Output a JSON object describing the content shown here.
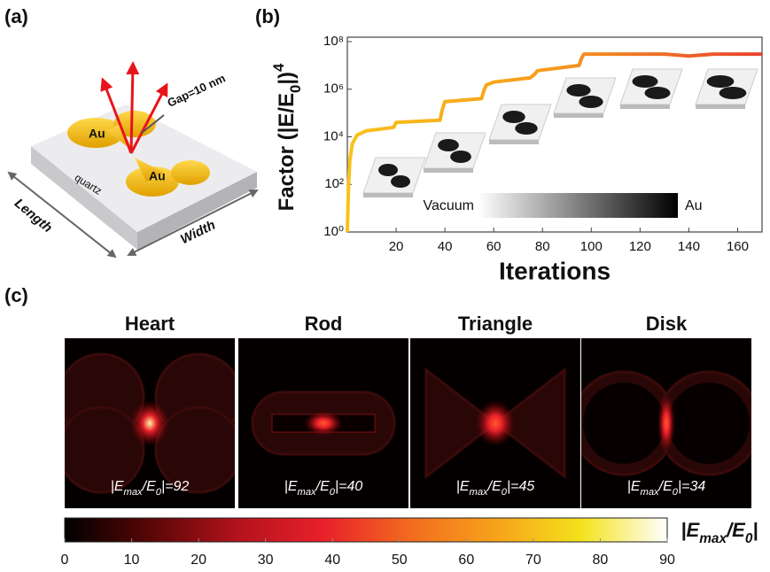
{
  "panel_labels": [
    "(a)",
    "(b)",
    "(c)"
  ],
  "panel_a": {
    "au_top": "Au",
    "au_bottom": "Au",
    "gap": "Gap=10 nm",
    "substrate": "quartz",
    "length": "Length",
    "width": "Width"
  },
  "chart_data": {
    "type": "line",
    "xlabel": "Iterations",
    "ylabel_parts": [
      {
        "text": "Factor (|E/E"
      },
      {
        "text": "0",
        "shift": "sub"
      },
      {
        "text": "|)"
      },
      {
        "text": "4",
        "shift": "sup"
      }
    ],
    "x": [
      0,
      0.5,
      1,
      2,
      4,
      8,
      15,
      19,
      20,
      38,
      39,
      40,
      55,
      56,
      57,
      60,
      75,
      77,
      78,
      95,
      96,
      97,
      130,
      140,
      150,
      170
    ],
    "values": [
      1,
      100,
      1000,
      5000,
      12000,
      18000,
      22000,
      25000,
      40000,
      50000,
      150000,
      300000,
      400000,
      900000,
      1500000,
      2000000,
      3000000,
      4500000,
      6000000,
      10000000,
      20000000,
      30000000,
      30000000,
      25000000,
      30000000,
      30000000
    ],
    "colors": [
      "#f9c21a",
      "#f59a1e",
      "#e8432e"
    ],
    "xlim": [
      0,
      170
    ],
    "xticks": [
      20,
      40,
      60,
      80,
      100,
      120,
      140,
      160
    ],
    "ylim": [
      1,
      100000000
    ],
    "log_y": true,
    "yticks": [
      {
        "value": 1,
        "label": "10⁰"
      },
      {
        "value": 100,
        "label": "10²"
      },
      {
        "value": 10000,
        "label": "10⁴"
      },
      {
        "value": 1000000,
        "label": "10⁶"
      },
      {
        "value": 100000000,
        "label": "10⁸"
      }
    ],
    "inset_colorbar": {
      "low": "Vacuum",
      "high": "Au",
      "colors": [
        "#ffffff",
        "#000000"
      ]
    }
  },
  "panel_c": {
    "maps": [
      {
        "title": "Heart",
        "label_parts": [
          {
            "text": "|E"
          },
          {
            "text": "max",
            "shift": "sub"
          },
          {
            "text": "/E"
          },
          {
            "text": "0",
            "shift": "sub"
          },
          {
            "text": "|=92"
          }
        ]
      },
      {
        "title": "Rod",
        "label_parts": [
          {
            "text": "|E"
          },
          {
            "text": "max",
            "shift": "sub"
          },
          {
            "text": "/E"
          },
          {
            "text": "0",
            "shift": "sub"
          },
          {
            "text": "|=40"
          }
        ]
      },
      {
        "title": "Triangle",
        "label_parts": [
          {
            "text": "|E"
          },
          {
            "text": "max",
            "shift": "sub"
          },
          {
            "text": "/E"
          },
          {
            "text": "0",
            "shift": "sub"
          },
          {
            "text": "|=45"
          }
        ]
      },
      {
        "title": "Disk",
        "label_parts": [
          {
            "text": "|E"
          },
          {
            "text": "max",
            "shift": "sub"
          },
          {
            "text": "/E"
          },
          {
            "text": "0",
            "shift": "sub"
          },
          {
            "text": "|=34"
          }
        ]
      }
    ],
    "colorbar": {
      "label_parts": [
        {
          "text": "|E"
        },
        {
          "text": "max",
          "shift": "sub"
        },
        {
          "text": "/E"
        },
        {
          "text": "0",
          "shift": "sub"
        },
        {
          "text": "|"
        }
      ],
      "range": [
        0,
        90
      ],
      "ticks": [
        0,
        10,
        20,
        30,
        40,
        50,
        60,
        70,
        80,
        90
      ],
      "colors": [
        "#000000",
        "#5a0606",
        "#b3121c",
        "#e8202a",
        "#f26a1f",
        "#f7a21b",
        "#f4e21c",
        "#ffffff"
      ]
    }
  }
}
